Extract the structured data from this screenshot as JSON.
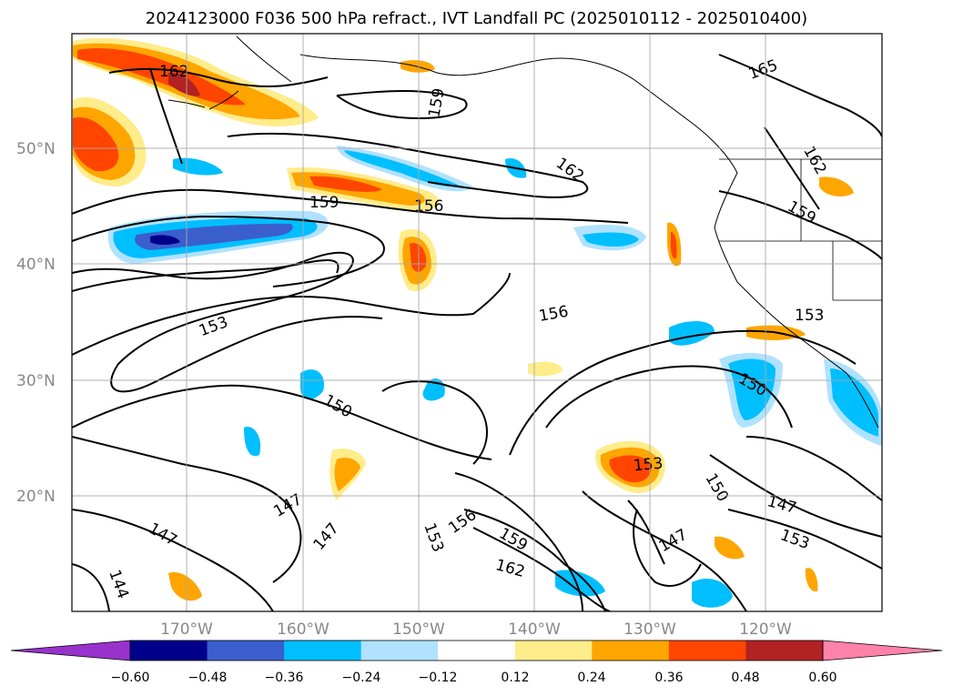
{
  "title": "2024123000 F036 500 hPa refract., IVT Landfall PC (2025010112 - 2025010400)",
  "lat_labels": [
    "50°N",
    "40°N",
    "30°N",
    "20°N"
  ],
  "lon_labels": [
    "170°W",
    "160°W",
    "150°W",
    "140°W",
    "130°W",
    "120°W"
  ],
  "contour_labels": [
    "162",
    "159",
    "165",
    "162",
    "162",
    "159",
    "159",
    "156",
    "156",
    "153",
    "153",
    "150",
    "150",
    "153",
    "150",
    "147",
    "153",
    "147",
    "147",
    "147",
    "147",
    "153",
    "156",
    "159",
    "162",
    "144"
  ],
  "colorbar": {
    "ticks": [
      "−0.60",
      "−0.48",
      "−0.36",
      "−0.24",
      "−0.12",
      "0.12",
      "0.24",
      "0.36",
      "0.48",
      "0.60"
    ],
    "colors": [
      "#9932cc",
      "#00008b",
      "#3a5fcd",
      "#00bfff",
      "#b0e2ff",
      "#ffffff",
      "#ffec8b",
      "#ffa500",
      "#ff4500",
      "#b22222",
      "#ff82ab"
    ]
  },
  "colors": {
    "frame": "#000000",
    "grid": "#aaaaaa",
    "tick_text": "#888888"
  }
}
